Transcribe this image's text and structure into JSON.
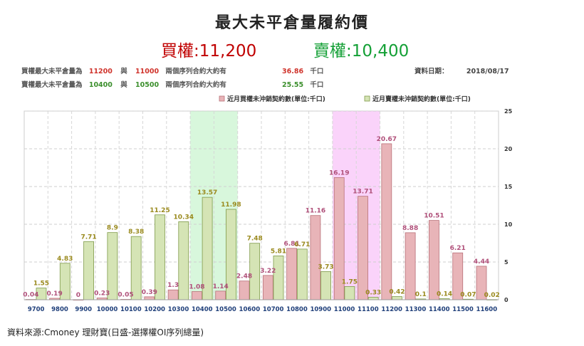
{
  "header": {
    "title": "最大未平倉量履約價",
    "call_label": "買權",
    "call_value": ":11,200",
    "put_label": "賣權",
    "put_value": ":10,400"
  },
  "info": {
    "row1": {
      "label": "買權最大未平倉量為",
      "strike_a": "11200",
      "conj": "與",
      "strike_b": "11000",
      "desc": "兩個序列合約大約有",
      "amount": "36.86",
      "unit": "千口"
    },
    "row2": {
      "label": "賣權最大未平倉量為",
      "strike_a": "10400",
      "conj": "與",
      "strike_b": "10500",
      "desc": "兩個序列合約大約有",
      "amount": "25.55",
      "unit": "千口"
    },
    "date_label": "資料日期：",
    "date_value": "2018/08/17"
  },
  "source": "資料來源:Cmoney 理財寶(日盛-選擇權OI序列總量)",
  "colors": {
    "call_fill": "#e8b4b8",
    "call_stroke": "#b87078",
    "put_fill": "#d5e4b5",
    "put_stroke": "#7f9a4a",
    "call_label": "#b0507a",
    "put_label": "#9a8a1e",
    "put_highlight": "#b8f0c0",
    "call_highlight": "#f8c0f8"
  },
  "chart_data": {
    "type": "bar",
    "categories": [
      "9700",
      "9800",
      "9900",
      "10000",
      "10100",
      "10200",
      "10300",
      "10400",
      "10500",
      "10600",
      "10700",
      "10800",
      "10900",
      "11000",
      "11100",
      "11200",
      "11300",
      "11400",
      "11500",
      "11600"
    ],
    "series": [
      {
        "name": "近月買權未沖銷契約數(單位:千口)",
        "values": [
          0.04,
          0.19,
          0,
          0.23,
          0.05,
          0.39,
          1.3,
          1.08,
          1.14,
          2.48,
          3.22,
          6.81,
          11.16,
          16.19,
          13.71,
          20.67,
          8.88,
          10.51,
          6.21,
          4.44
        ]
      },
      {
        "name": "近月賣權未沖銷契約數(單位:千口)",
        "values": [
          1.55,
          4.83,
          7.71,
          8.9,
          8.38,
          11.25,
          10.34,
          13.57,
          11.98,
          7.48,
          5.81,
          6.71,
          3.73,
          1.75,
          0.33,
          0.42,
          0.1,
          0.14,
          0.07,
          0.02
        ]
      }
    ],
    "ylim": [
      0,
      25
    ],
    "yticks": [
      0,
      5,
      10,
      15,
      20,
      25
    ],
    "ytick_labels": [
      "0",
      "5",
      "10",
      "15",
      "20",
      "25"
    ],
    "y_axis_side": "right",
    "legend": "top-right",
    "grid": true,
    "highlight_categories": [
      "10400",
      "10500",
      "11000",
      "11100"
    ]
  }
}
